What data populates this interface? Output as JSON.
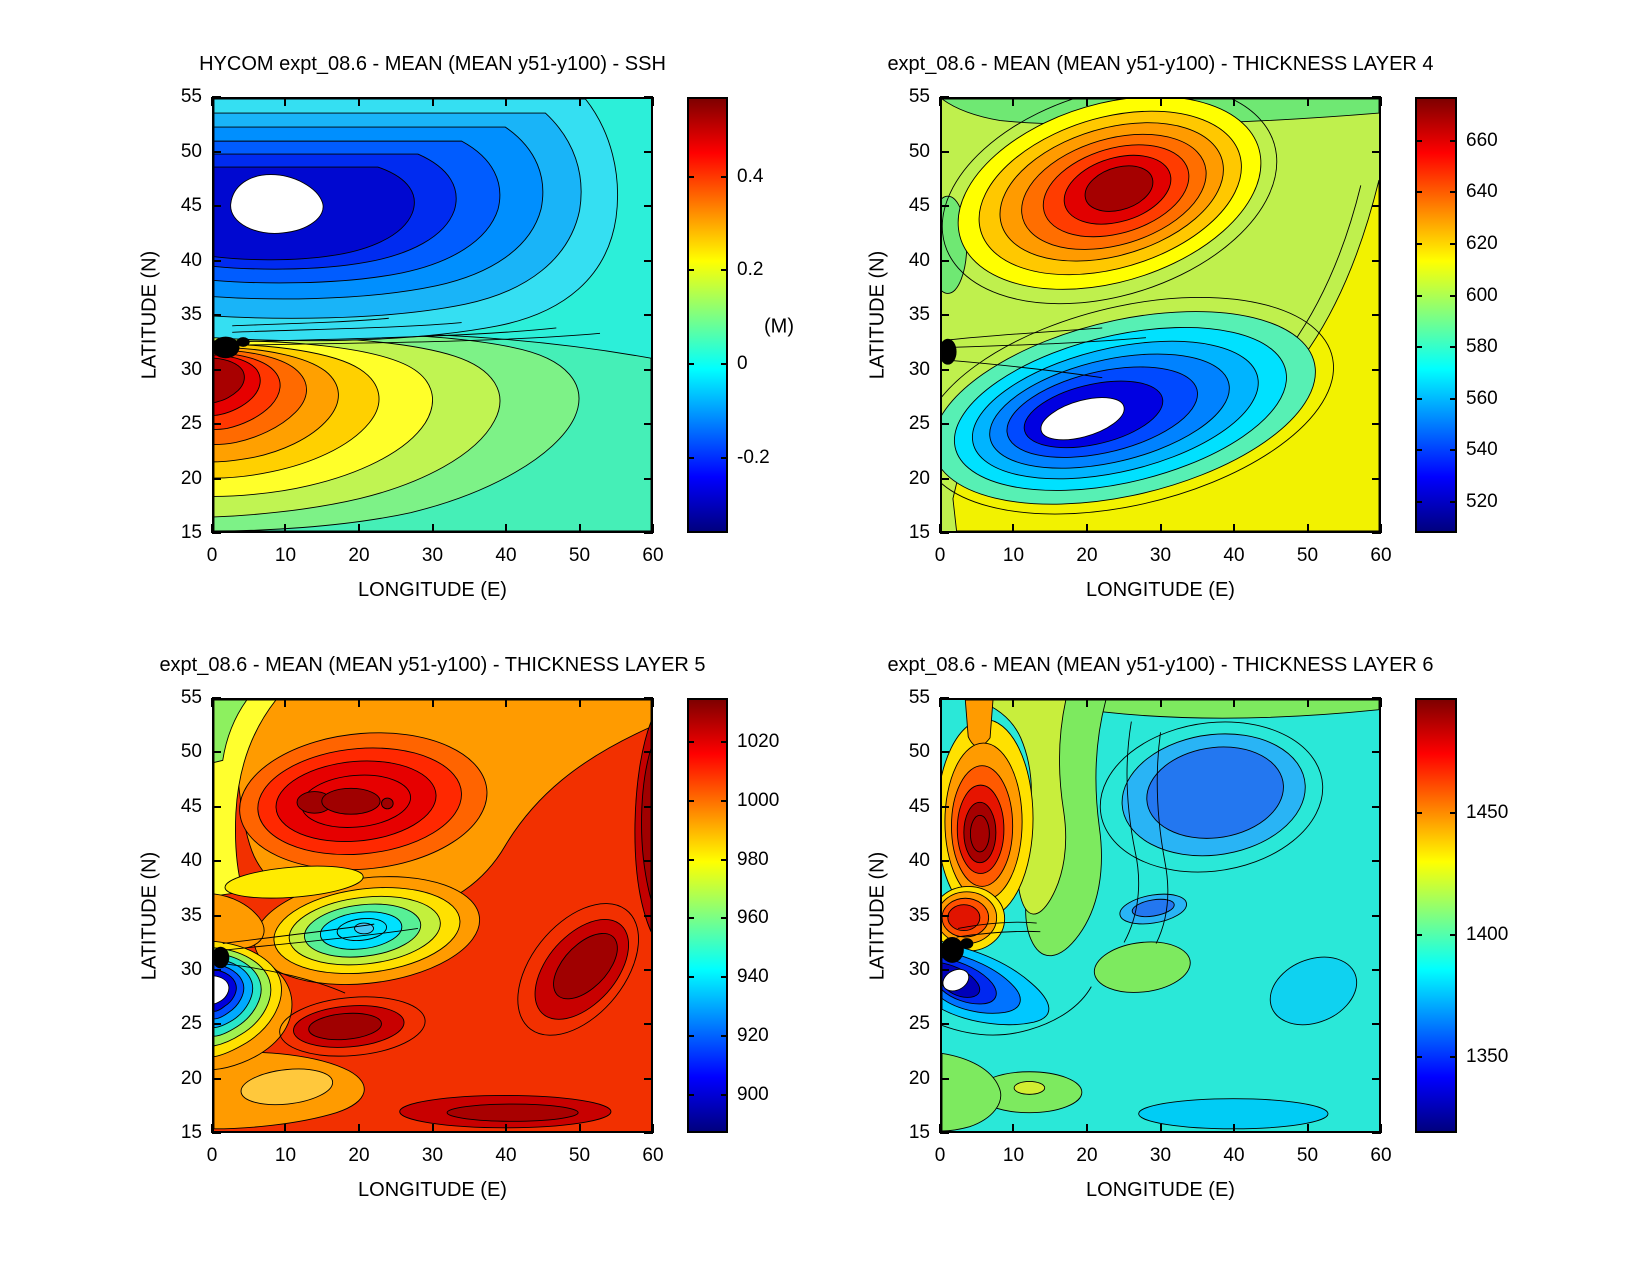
{
  "chart_data": [
    {
      "type": "contour",
      "panel": "top-left",
      "title": "HYCOM expt_08.6 - MEAN (MEAN y51-y100) - SSH",
      "xlabel": "LONGITUDE (E)",
      "ylabel": "LATITUDE (N)",
      "xlim": [
        0,
        60
      ],
      "ylim": [
        15,
        55
      ],
      "x_ticks": [
        0,
        10,
        20,
        30,
        40,
        50,
        60
      ],
      "y_ticks": [
        15,
        20,
        25,
        30,
        35,
        40,
        45,
        50,
        55
      ],
      "grid": false,
      "colormap": "jet",
      "colorbar": {
        "unit_label": "(M)",
        "ticks": [
          "0.4",
          "0.2",
          "0",
          "-0.2"
        ],
        "range": [
          -0.36,
          0.57
        ]
      },
      "features": [
        "cyclonic low SSH gyre below -0.3 m centered near 10E 45N (white core below color scale)",
        "high SSH above 0.5 m at the western boundary near 2E 29N",
        "sharp SSH front along about 32N at the western boundary",
        "near-zero SSH (cyan-green) over the southeastern half of the domain"
      ]
    },
    {
      "type": "contour",
      "panel": "top-right",
      "title": "expt_08.6 - MEAN (MEAN y51-y100) - THICKNESS LAYER 4",
      "xlabel": "LONGITUDE (E)",
      "ylabel": "LATITUDE (N)",
      "xlim": [
        0,
        60
      ],
      "ylim": [
        15,
        55
      ],
      "x_ticks": [
        0,
        10,
        20,
        30,
        40,
        50,
        60
      ],
      "y_ticks": [
        15,
        20,
        25,
        30,
        35,
        40,
        45,
        50,
        55
      ],
      "grid": false,
      "colormap": "jet",
      "colorbar": {
        "unit_label": "",
        "ticks": [
          "660",
          "640",
          "620",
          "600",
          "580",
          "560",
          "540",
          "520"
        ],
        "range": [
          508,
          677
        ]
      },
      "features": [
        "thickness maximum above 670 in a tilted lens centered near 23E 47N",
        "thickness minimum below 515 in a tilted lens near 18E 25N (white core below color scale)",
        "yellow background about 600-620 in the south and east",
        "contour knot at the western boundary near 1E 31N"
      ]
    },
    {
      "type": "contour",
      "panel": "bottom-left",
      "title": "expt_08.6 - MEAN (MEAN y51-y100) - THICKNESS LAYER 5",
      "xlabel": "LONGITUDE (E)",
      "ylabel": "LATITUDE (N)",
      "xlim": [
        0,
        60
      ],
      "ylim": [
        15,
        55
      ],
      "x_ticks": [
        0,
        10,
        20,
        30,
        40,
        50,
        60
      ],
      "y_ticks": [
        15,
        20,
        25,
        30,
        35,
        40,
        45,
        50,
        55
      ],
      "grid": false,
      "colormap": "jet",
      "colorbar": {
        "unit_label": "",
        "ticks": [
          "1020",
          "1000",
          "980",
          "960",
          "940",
          "920",
          "900"
        ],
        "range": [
          887,
          1035
        ]
      },
      "features": [
        "broad red field about 1000-1020 over most of the domain",
        "maxima above 1030 near 18E 45N, 50E 30N, 18E 24N and along the south",
        "cool cyan pool about 940 near 20E 34N",
        "minimum below 890 at the western boundary near 1E 27N (white core)"
      ]
    },
    {
      "type": "contour",
      "panel": "bottom-right",
      "title": "expt_08.6 - MEAN (MEAN y51-y100) - THICKNESS LAYER 6",
      "xlabel": "LONGITUDE (E)",
      "ylabel": "LATITUDE (N)",
      "xlim": [
        0,
        60
      ],
      "ylim": [
        15,
        55
      ],
      "x_ticks": [
        0,
        10,
        20,
        30,
        40,
        50,
        60
      ],
      "y_ticks": [
        15,
        20,
        25,
        30,
        35,
        40,
        45,
        50,
        55
      ],
      "grid": false,
      "colormap": "jet",
      "colorbar": {
        "unit_label": "",
        "ticks": [
          "1450",
          "1400",
          "1350"
        ],
        "range": [
          1319,
          1497
        ]
      },
      "features": [
        "maximum above 1490 in a dark-red core near 5E 43N",
        "low pool about 1360 (blue) near 37E 46N",
        "minimum below 1325 near 3E 29N (white core) with contour knot at 1E 31N",
        "cyan background about 1390 over the eastern half"
      ]
    }
  ]
}
